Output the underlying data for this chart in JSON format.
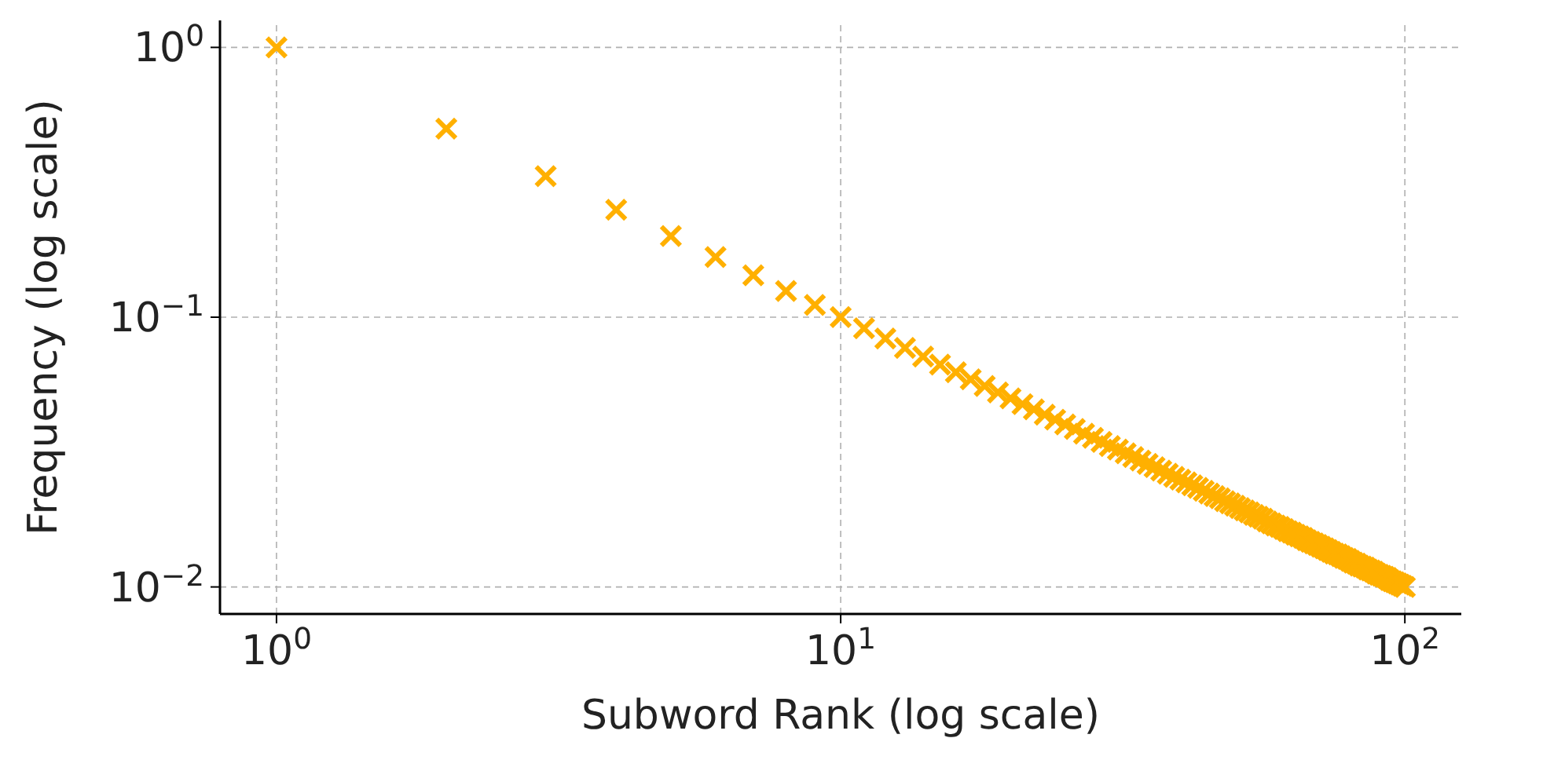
{
  "chart_data": {
    "type": "scatter",
    "xlabel": "Subword Rank (log scale)",
    "ylabel": "Frequency (log scale)",
    "log": "xy",
    "grid": true,
    "marker": "cross",
    "xlim": [
      0.794,
      125.9
    ],
    "ylim": [
      0.00794,
      1.259
    ],
    "xticks": [
      {
        "value": 1,
        "label": "10$^{0}$"
      },
      {
        "value": 10,
        "label": "10$^{1}$"
      },
      {
        "value": 100,
        "label": "10$^{2}$"
      }
    ],
    "yticks": [
      {
        "value": 0.01,
        "label": "10$^{−2}$"
      },
      {
        "value": 0.1,
        "label": "10$^{−1}$"
      },
      {
        "value": 1,
        "label": "10$^{0}$"
      }
    ],
    "series": [
      {
        "color": "#ffb000",
        "x": [
          1,
          2,
          3,
          4,
          5,
          6,
          7,
          8,
          9,
          10,
          11,
          12,
          13,
          14,
          15,
          16,
          17,
          18,
          19,
          20,
          21,
          22,
          23,
          24,
          25,
          26,
          27,
          28,
          29,
          30,
          31,
          32,
          33,
          34,
          35,
          36,
          37,
          38,
          39,
          40,
          41,
          42,
          43,
          44,
          45,
          46,
          47,
          48,
          49,
          50,
          51,
          52,
          53,
          54,
          55,
          56,
          57,
          58,
          59,
          60,
          61,
          62,
          63,
          64,
          65,
          66,
          67,
          68,
          69,
          70,
          71,
          72,
          73,
          74,
          75,
          76,
          77,
          78,
          79,
          80,
          81,
          82,
          83,
          84,
          85,
          86,
          87,
          88,
          89,
          90,
          91,
          92,
          93,
          94,
          95,
          96,
          97,
          98,
          99,
          100
        ],
        "values": [
          1,
          0.5,
          0.333,
          0.25,
          0.2,
          0.167,
          0.143,
          0.125,
          0.111,
          0.1,
          0.0909,
          0.0833,
          0.0769,
          0.0714,
          0.0667,
          0.0625,
          0.0588,
          0.0556,
          0.0526,
          0.05,
          0.0476,
          0.0455,
          0.0435,
          0.0417,
          0.04,
          0.0385,
          0.037,
          0.0357,
          0.0345,
          0.0333,
          0.0323,
          0.0313,
          0.0303,
          0.0294,
          0.0286,
          0.0278,
          0.027,
          0.0263,
          0.0256,
          0.025,
          0.0244,
          0.0238,
          0.0233,
          0.0227,
          0.0222,
          0.0217,
          0.0213,
          0.0208,
          0.0204,
          0.02,
          0.0196,
          0.0192,
          0.0189,
          0.0185,
          0.0182,
          0.0179,
          0.0175,
          0.0172,
          0.0169,
          0.0167,
          0.0164,
          0.0161,
          0.0159,
          0.0156,
          0.0154,
          0.0152,
          0.0149,
          0.0147,
          0.0145,
          0.0143,
          0.0141,
          0.0139,
          0.0137,
          0.0135,
          0.0133,
          0.0132,
          0.013,
          0.0128,
          0.0127,
          0.0125,
          0.0123,
          0.0122,
          0.012,
          0.0119,
          0.0118,
          0.0116,
          0.0115,
          0.0114,
          0.0112,
          0.0111,
          0.011,
          0.0109,
          0.0108,
          0.0106,
          0.0105,
          0.0104,
          0.0103,
          0.0102,
          0.0101,
          0.01
        ]
      }
    ]
  }
}
